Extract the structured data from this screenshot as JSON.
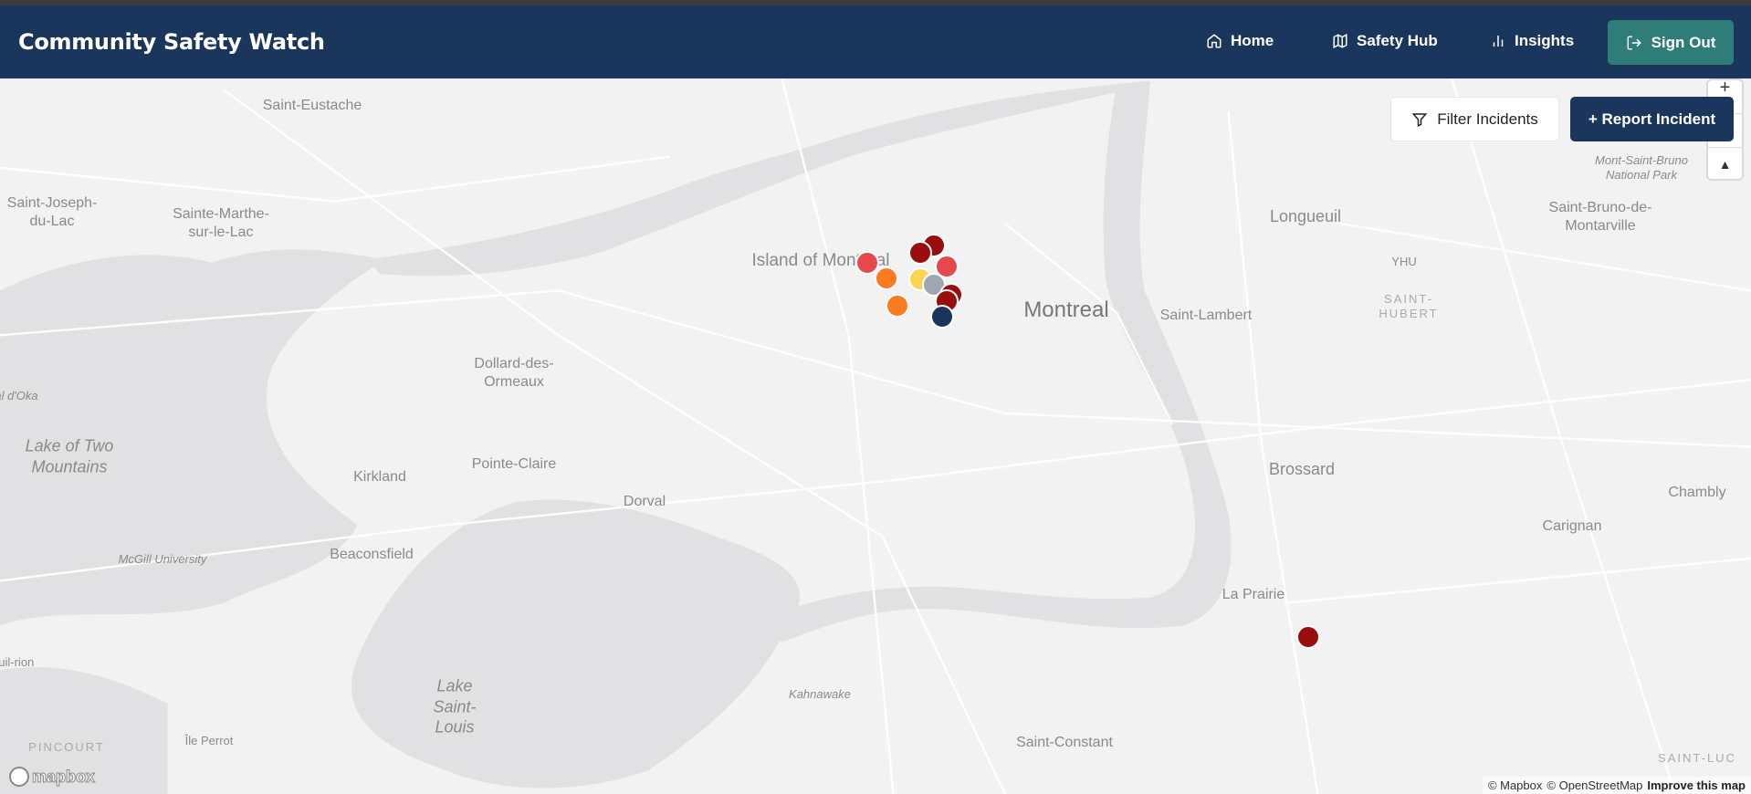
{
  "header": {
    "title": "Community Safety Watch",
    "nav": [
      {
        "label": "Home",
        "icon": "home-icon"
      },
      {
        "label": "Safety Hub",
        "icon": "map-icon"
      },
      {
        "label": "Insights",
        "icon": "bar-chart-icon"
      }
    ],
    "sign_out": {
      "label": "Sign Out",
      "icon": "log-out-icon",
      "color": "#2e7d78"
    },
    "background": "#1b365d"
  },
  "map_controls": {
    "filter_label": "Filter Incidents",
    "report_label": "+ Report Incident",
    "zoom_in": "+",
    "compass": "▲"
  },
  "map_labels": [
    "Saint-Eustache",
    "Saint-Joseph-du-Lac",
    "Sainte-Marthe-sur-le-Lac",
    "Island of Montreal",
    "Montreal",
    "Longueuil",
    "YHU",
    "SAINT-HUBERT",
    "Saint-Lambert",
    "Mont-Saint-Bruno National Park",
    "Saint-Bruno-de-Montarville",
    "Dollard-des-Ormeaux",
    "Lake of Two Mountains",
    "Pointe-Claire",
    "Kirkland",
    "Dorval",
    "Brossard",
    "Chambly",
    "Carignan",
    "McGill University",
    "Beaconsfield",
    "La Prairie",
    "Lake Saint-Louis",
    "Kahnawake",
    "Saint-Constant",
    "PINCOURT",
    "Île Perrot",
    "SAINT-LUC",
    "al d'Oka",
    "reuil-rion"
  ],
  "incident_colors": {
    "red": "#e5484d",
    "orange": "#f97a1f",
    "darkred": "#990d0d",
    "yellow": "#fdd44f",
    "gray": "#9ea6b2",
    "navy": "#1b365d"
  },
  "incidents": [
    {
      "severity": "red"
    },
    {
      "severity": "orange"
    },
    {
      "severity": "orange"
    },
    {
      "severity": "darkred"
    },
    {
      "severity": "darkred"
    },
    {
      "severity": "red"
    },
    {
      "severity": "yellow"
    },
    {
      "severity": "gray"
    },
    {
      "severity": "darkred"
    },
    {
      "severity": "darkred"
    },
    {
      "severity": "navy"
    },
    {
      "severity": "darkred"
    }
  ],
  "attribution": {
    "mapbox": "© Mapbox",
    "osm": "© OpenStreetMap",
    "improve": "Improve this map"
  },
  "logo": "mapbox"
}
